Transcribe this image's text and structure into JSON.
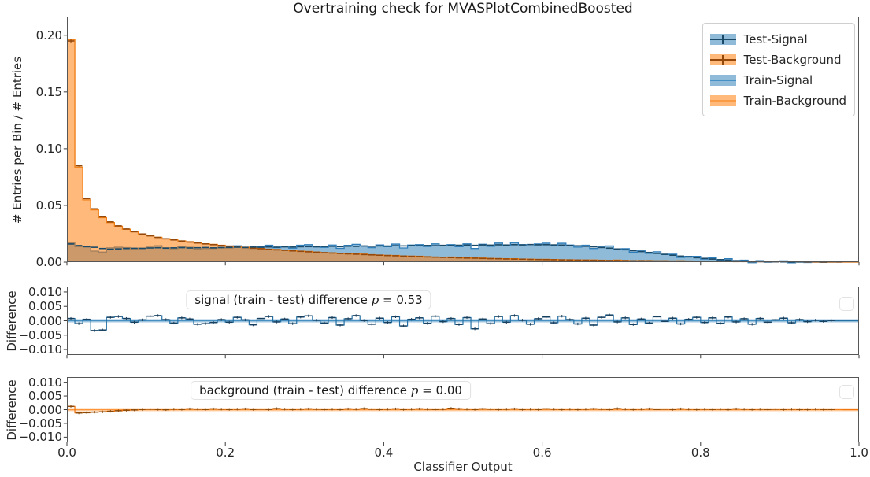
{
  "figure": {
    "title": "Overtraining check for MVASPlotCombinedBoosted",
    "xlabel": "Classifier Output",
    "background_color": "#ffffff"
  },
  "colors": {
    "signal_base": "#1f77b4",
    "signal_edge": "#2e7cb8",
    "signal_dark": "#1a4a68",
    "background_base": "#ff7f0e",
    "background_edge": "#f07d12",
    "background_dark": "#94480a",
    "spine": "#565656",
    "tick": "#3a3a3a"
  },
  "main_plot": {
    "ylabel": "# Entries per Bin / # Entries",
    "yticks": [
      {
        "label": "0.00",
        "value": 0.0
      },
      {
        "label": "0.05",
        "value": 0.05
      },
      {
        "label": "0.10",
        "value": 0.1
      },
      {
        "label": "0.15",
        "value": 0.15
      },
      {
        "label": "0.20",
        "value": 0.2
      }
    ],
    "legend": {
      "items": [
        {
          "label": "Test-Signal",
          "style": "errorbar",
          "color": "signal"
        },
        {
          "label": "Test-Background",
          "style": "errorbar",
          "color": "background"
        },
        {
          "label": "Train-Signal",
          "style": "filled-step",
          "color": "signal"
        },
        {
          "label": "Train-Background",
          "style": "filled-step",
          "color": "background"
        }
      ]
    }
  },
  "signal_diff_plot": {
    "ylabel": "Difference",
    "annotation_prefix": "signal (train - test) difference ",
    "annotation_var": "p",
    "annotation_suffix": " = 0.53",
    "yticks": [
      {
        "label": "0.010",
        "value": 0.01
      },
      {
        "label": "0.005",
        "value": 0.005
      },
      {
        "label": "0.000",
        "value": 0.0
      },
      {
        "label": "−0.005",
        "value": -0.005
      },
      {
        "label": "−0.010",
        "value": -0.01
      }
    ]
  },
  "background_diff_plot": {
    "ylabel": "Difference",
    "annotation_prefix": "background (train - test) difference ",
    "annotation_var": "p",
    "annotation_suffix": " = 0.00",
    "yticks": [
      {
        "label": "0.010",
        "value": 0.01
      },
      {
        "label": "0.005",
        "value": 0.005
      },
      {
        "label": "0.000",
        "value": 0.0
      },
      {
        "label": "−0.005",
        "value": -0.005
      },
      {
        "label": "−0.010",
        "value": -0.01
      }
    ]
  },
  "xticks": [
    {
      "label": "0.0",
      "value": 0.0
    },
    {
      "label": "0.2",
      "value": 0.2
    },
    {
      "label": "0.4",
      "value": 0.4
    },
    {
      "label": "0.6",
      "value": 0.6
    },
    {
      "label": "0.8",
      "value": 0.8
    },
    {
      "label": "1.0",
      "value": 1.0
    }
  ],
  "chart_data": {
    "main": {
      "type": "bar",
      "subtype": "overlaid-step-histograms",
      "title": "Overtraining check for MVASPlotCombinedBoosted",
      "xlabel": "Classifier Output",
      "ylabel": "# Entries per Bin / # Entries",
      "xlim": [
        0,
        1
      ],
      "ylim": [
        0,
        0.2165
      ],
      "n_bins": 100,
      "bin_width": 0.01,
      "legend_position": "upper-right",
      "grid": false,
      "series": [
        {
          "name": "Test-Signal",
          "style": "errorbar-hist",
          "values": [
            0.016,
            0.0146,
            0.0136,
            0.0131,
            0.012,
            0.0114,
            0.0117,
            0.012,
            0.0122,
            0.0121,
            0.0125,
            0.0127,
            0.0123,
            0.0126,
            0.0128,
            0.0125,
            0.0127,
            0.0129,
            0.0126,
            0.0128,
            0.013,
            0.0132,
            0.0129,
            0.0133,
            0.0131,
            0.0134,
            0.0132,
            0.0135,
            0.0133,
            0.0136,
            0.0137,
            0.0135,
            0.0138,
            0.014,
            0.0137,
            0.0141,
            0.0139,
            0.0142,
            0.014,
            0.0143,
            0.0142,
            0.0145,
            0.0143,
            0.0146,
            0.0144,
            0.0147,
            0.0145,
            0.0148,
            0.0146,
            0.0149,
            0.015,
            0.0148,
            0.0152,
            0.015,
            0.0153,
            0.0151,
            0.0154,
            0.0152,
            0.0155,
            0.0153,
            0.0154,
            0.0152,
            0.015,
            0.0147,
            0.0144,
            0.014,
            0.0135,
            0.0129,
            0.0123,
            0.0116,
            0.0109,
            0.0101,
            0.0093,
            0.0085,
            0.0077,
            0.0069,
            0.0061,
            0.0053,
            0.0046,
            0.0039,
            0.0033,
            0.0027,
            0.0022,
            0.0017,
            0.0013,
            0.001,
            0.0007,
            0.0005,
            0.0004,
            0.0003,
            0.0002,
            0.0001,
            0.0001,
            0.0,
            0.0,
            0.0,
            0.0,
            0.0,
            0.0,
            0.0
          ]
        },
        {
          "name": "Test-Background",
          "style": "errorbar-hist",
          "values": [
            0.195,
            0.085,
            0.056,
            0.047,
            0.04,
            0.0355,
            0.032,
            0.0292,
            0.0268,
            0.0248,
            0.0232,
            0.0218,
            0.0206,
            0.0196,
            0.0186,
            0.0177,
            0.0169,
            0.0161,
            0.0154,
            0.0147,
            0.0141,
            0.0135,
            0.0129,
            0.0124,
            0.0118,
            0.0113,
            0.0108,
            0.0104,
            0.0099,
            0.0095,
            0.0091,
            0.0087,
            0.0083,
            0.008,
            0.0076,
            0.0073,
            0.007,
            0.0067,
            0.0064,
            0.0061,
            0.0058,
            0.0056,
            0.0053,
            0.0051,
            0.0049,
            0.0046,
            0.0044,
            0.0042,
            0.004,
            0.0038,
            0.0036,
            0.0035,
            0.0033,
            0.0031,
            0.003,
            0.0028,
            0.0027,
            0.0026,
            0.0024,
            0.0023,
            0.0022,
            0.0021,
            0.002,
            0.0019,
            0.0018,
            0.0017,
            0.0016,
            0.0015,
            0.0014,
            0.0014,
            0.0013,
            0.0012,
            0.0012,
            0.0011,
            0.001,
            0.001,
            0.0009,
            0.0009,
            0.0008,
            0.0008,
            0.0007,
            0.0007,
            0.0006,
            0.0006,
            0.0005,
            0.0005,
            0.0004,
            0.0004,
            0.0004,
            0.0003,
            0.0003,
            0.0002,
            0.0002,
            0.0002,
            0.0001,
            0.0001,
            0.0001,
            0.0001,
            0.0,
            0.0
          ]
        },
        {
          "name": "Train-Signal",
          "style": "filled-step",
          "derived": "Test-Signal values plus signal_diff values"
        },
        {
          "name": "Train-Background",
          "style": "filled-step",
          "derived": "Test-Background values plus background_diff values"
        }
      ]
    },
    "signal_diff": {
      "type": "bar",
      "subtype": "step-difference",
      "label": "signal (train - test) difference p = 0.53",
      "p_value": 0.53,
      "ylabel": "Difference",
      "xlim": [
        0,
        1
      ],
      "ylim": [
        -0.0119,
        0.0119
      ],
      "band_halfwidth": 0.0006,
      "values": [
        0.0008,
        -0.001,
        0.0005,
        -0.0034,
        -0.0032,
        0.0012,
        0.0015,
        0.0008,
        -0.0005,
        0.0003,
        0.0016,
        0.0018,
        0.0004,
        -0.0008,
        0.001,
        0.0006,
        -0.0012,
        -0.001,
        -0.0006,
        0.0004,
        -0.0005,
        0.0012,
        0.0003,
        -0.0014,
        0.0008,
        0.0015,
        -0.0004,
        0.0006,
        -0.001,
        0.0013,
        0.0017,
        0.0002,
        -0.0008,
        0.0011,
        -0.0015,
        0.0007,
        0.0018,
        0.0001,
        -0.0012,
        0.0009,
        -0.0006,
        0.0014,
        -0.0018,
        0.0005,
        0.001,
        -0.0009,
        0.0016,
        -0.0003,
        0.0008,
        -0.0013,
        0.0011,
        -0.0028,
        0.0006,
        -0.001,
        0.0015,
        -0.0005,
        0.0018,
        0.0002,
        -0.0012,
        0.0007,
        0.0013,
        -0.0007,
        0.0016,
        0.0004,
        -0.0011,
        0.0009,
        -0.0015,
        0.0012,
        0.002,
        -0.0004,
        0.001,
        -0.0013,
        0.0006,
        -0.0008,
        0.0014,
        -0.0002,
        0.0009,
        -0.0011,
        0.0005,
        0.0012,
        -0.0006,
        0.001,
        -0.0009,
        0.0013,
        -0.0004,
        0.0007,
        -0.0012,
        0.0008,
        -0.0005,
        0.0003,
        0.0009,
        -0.0007,
        0.0004,
        -0.0003,
        0.0002,
        -0.0002,
        0.0001,
        0.0,
        0.0,
        0.0
      ]
    },
    "background_diff": {
      "type": "bar",
      "subtype": "step-difference",
      "label": "background (train - test) difference p = 0.00",
      "p_value": 0.0,
      "ylabel": "Difference",
      "xlim": [
        0,
        1
      ],
      "ylim": [
        -0.0119,
        0.0119
      ],
      "band_halfwidth": 0.0006,
      "values": [
        0.0012,
        -0.0012,
        -0.0011,
        -0.0009,
        -0.0008,
        -0.0006,
        -0.0004,
        -0.0002,
        -0.0001,
        0.0001,
        0.0002,
        0.0001,
        0.0,
        0.0002,
        0.0001,
        0.0003,
        0.0002,
        0.0001,
        0.0003,
        0.0002,
        0.0001,
        0.0002,
        0.0003,
        0.0001,
        0.0002,
        0.0001,
        0.0004,
        0.0002,
        0.0001,
        0.0002,
        0.0003,
        0.0002,
        0.0001,
        0.0002,
        0.0001,
        0.0003,
        0.0002,
        0.0004,
        0.0002,
        0.0001,
        0.0002,
        0.0003,
        0.0001,
        0.0002,
        0.0003,
        0.0002,
        0.0001,
        0.0002,
        0.0005,
        0.0003,
        0.0002,
        0.0001,
        0.0003,
        0.0002,
        0.0001,
        0.0002,
        0.0003,
        0.0001,
        0.0002,
        0.0001,
        0.0003,
        0.0002,
        0.0001,
        0.0002,
        0.0001,
        0.0002,
        0.0003,
        0.0002,
        0.0001,
        0.0004,
        0.0002,
        0.0001,
        0.0002,
        0.0003,
        0.0001,
        0.0002,
        0.0001,
        0.0003,
        0.0002,
        0.0001,
        0.0002,
        0.0001,
        0.0002,
        0.0001,
        0.0003,
        0.0002,
        0.0001,
        0.0002,
        0.0001,
        0.0002,
        0.0001,
        0.0002,
        0.0001,
        0.0001,
        0.0002,
        0.0001,
        0.0001,
        0.0001,
        0.0,
        0.0
      ]
    }
  }
}
